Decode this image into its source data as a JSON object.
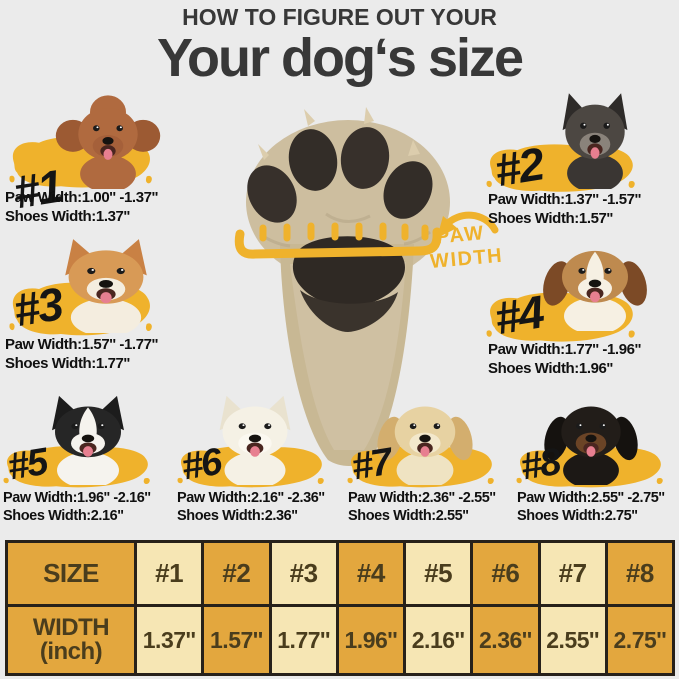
{
  "title": {
    "kicker": "HOW TO FIGURE OUT YOUR",
    "main": "Your dog‘s size"
  },
  "paw_callout": {
    "line1": "PAW",
    "line2": "WIDTH"
  },
  "sizes": [
    {
      "tag": "#1",
      "breed": "toy-poodle",
      "paw_line": "Paw Width:1.00''  -1.37''",
      "shoes_line": "Shoes Width:1.37''",
      "dog": {
        "ear": "round",
        "earColor": "#9C5A33",
        "head": "#B06A3F",
        "muzzle": "#A5603A",
        "chest": "#B06A3F",
        "blaze": ""
      }
    },
    {
      "tag": "#2",
      "breed": "miniature-schnauzer",
      "paw_line": "Paw Width:1.37''  -1.57''",
      "shoes_line": "Shoes Width:1.57''",
      "dog": {
        "ear": "point",
        "earColor": "#2E2B29",
        "head": "#4C4742",
        "muzzle": "#8A837B",
        "chest": "#3A3633",
        "blaze": ""
      }
    },
    {
      "tag": "#3",
      "breed": "shiba-akita",
      "paw_line": "Paw Width:1.57''  -1.77''",
      "shoes_line": "Shoes Width:1.77''",
      "dog": {
        "ear": "point",
        "earColor": "#C98144",
        "head": "#D89A56",
        "muzzle": "#F4EDDF",
        "chest": "#F4EDDF",
        "blaze": ""
      }
    },
    {
      "tag": "#4",
      "breed": "beagle",
      "paw_line": "Paw Width:1.77''  -1.96''",
      "shoes_line": "Shoes Width:1.96''",
      "dog": {
        "ear": "floppy",
        "earColor": "#7C4A26",
        "head": "#BE8A4F",
        "muzzle": "#F6F0E3",
        "chest": "#F6F0E3",
        "blaze": "#F6F0E3"
      }
    },
    {
      "tag": "#5",
      "breed": "border-collie",
      "paw_line": "Paw Width:1.96''  -2.16''",
      "shoes_line": "Shoes Width:2.16''",
      "dog": {
        "ear": "point",
        "earColor": "#1C1C1C",
        "head": "#262626",
        "muzzle": "#F5F3EE",
        "chest": "#F5F3EE",
        "blaze": "#F5F3EE"
      }
    },
    {
      "tag": "#6",
      "breed": "samoyed",
      "paw_line": "Paw Width:2.16''  -2.36''",
      "shoes_line": "Shoes Width:2.36''",
      "dog": {
        "ear": "point",
        "earColor": "#E9E2CF",
        "head": "#F5F1E5",
        "muzzle": "#FBF8F0",
        "chest": "#F5F1E5",
        "blaze": ""
      }
    },
    {
      "tag": "#7",
      "breed": "golden-retriever",
      "paw_line": "Paw Width:2.36''  -2.55''",
      "shoes_line": "Shoes Width:2.55''",
      "dog": {
        "ear": "floppy",
        "earColor": "#D3AE6E",
        "head": "#E7D2A2",
        "muzzle": "#F3E8CC",
        "chest": "#EFE3C2",
        "blaze": ""
      }
    },
    {
      "tag": "#8",
      "breed": "rottweiler",
      "paw_line": "Paw Width:2.55''  -2.75''",
      "shoes_line": "Shoes Width:2.75''",
      "dog": {
        "ear": "floppy",
        "earColor": "#15120F",
        "head": "#221D19",
        "muzzle": "#6B4426",
        "chest": "#1C1815",
        "blaze": ""
      }
    }
  ],
  "table": {
    "size_label": "SIZE",
    "width_label_line1": "WIDTH",
    "width_label_line2": "(inch)",
    "columns": [
      {
        "size": "#1",
        "width": "1.37''"
      },
      {
        "size": "#2",
        "width": "1.57''"
      },
      {
        "size": "#3",
        "width": "1.77''"
      },
      {
        "size": "#4",
        "width": "1.96''"
      },
      {
        "size": "#5",
        "width": "2.16''"
      },
      {
        "size": "#6",
        "width": "2.36''"
      },
      {
        "size": "#7",
        "width": "2.55''"
      },
      {
        "size": "#8",
        "width": "2.75''"
      }
    ]
  },
  "colors": {
    "background": "#EBEBEB",
    "brush_yellow": "#EFB22C",
    "table_gold": "#E3A73E",
    "table_cream": "#F6E6B4",
    "table_border": "#27211A",
    "table_text": "#4A3D1D",
    "title_text": "#383838",
    "label_text": "#101010",
    "paw_fur": "#CDBE9F",
    "paw_pad": "#2F2924"
  }
}
